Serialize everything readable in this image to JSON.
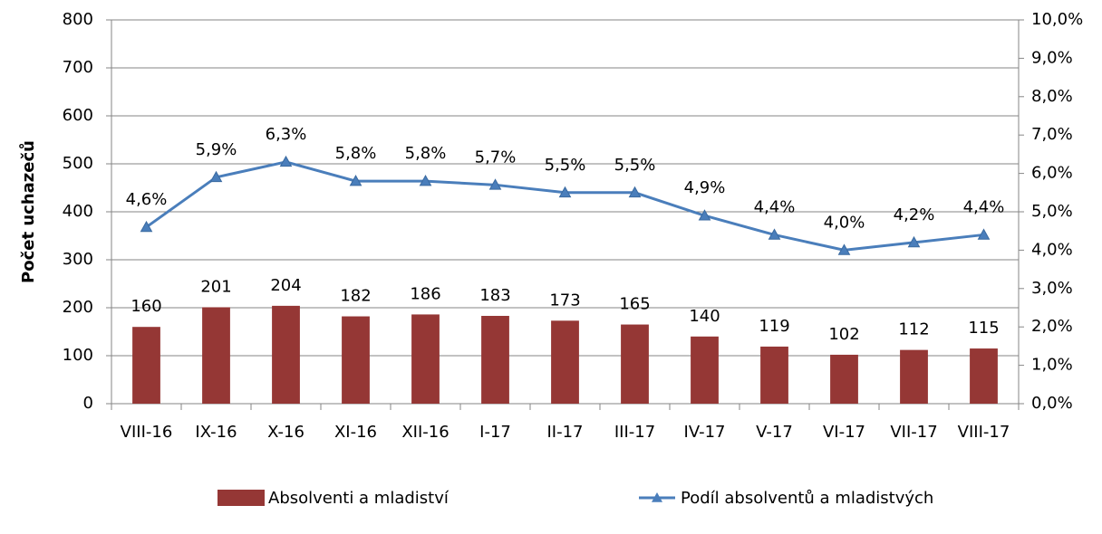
{
  "chart_data": {
    "type": "combo",
    "y_label": "Počet uchazečů",
    "categories": [
      "VIII-16",
      "IX-16",
      "X-16",
      "XI-16",
      "XII-16",
      "I-17",
      "II-17",
      "III-17",
      "IV-17",
      "V-17",
      "VI-17",
      "VII-17",
      "VIII-17"
    ],
    "series": [
      {
        "name": "Absolventi a mladiství",
        "type": "bar",
        "color": "#953735",
        "values": [
          160,
          201,
          204,
          182,
          186,
          183,
          173,
          165,
          140,
          119,
          102,
          112,
          115
        ]
      },
      {
        "name": "Podíl absolventů a mladistvých",
        "type": "line",
        "axis": "y2",
        "color": "#4a7ebb",
        "values": [
          4.6,
          5.9,
          6.3,
          5.8,
          5.8,
          5.7,
          5.5,
          5.5,
          4.9,
          4.4,
          4.0,
          4.2,
          4.4
        ],
        "value_labels": [
          "4,6%",
          "5,9%",
          "6,3%",
          "5,8%",
          "5,8%",
          "5,7%",
          "5,5%",
          "5,5%",
          "4,9%",
          "4,4%",
          "4,0%",
          "4,2%",
          "4,4%"
        ]
      }
    ],
    "ylim": [
      0,
      800
    ],
    "yticks": [
      0,
      100,
      200,
      300,
      400,
      500,
      600,
      700,
      800
    ],
    "y2lim": [
      0,
      10
    ],
    "y2ticks": [
      {
        "value": 0,
        "label": "0,0%"
      },
      {
        "value": 1,
        "label": "1,0%"
      },
      {
        "value": 2,
        "label": "2,0%"
      },
      {
        "value": 3,
        "label": "3,0%"
      },
      {
        "value": 4,
        "label": "4,0%"
      },
      {
        "value": 5,
        "label": "5,0%"
      },
      {
        "value": 6,
        "label": "6,0%"
      },
      {
        "value": 7,
        "label": "7,0%"
      },
      {
        "value": 8,
        "label": "8,0%"
      },
      {
        "value": 9,
        "label": "9,0%"
      },
      {
        "value": 10,
        "label": "10,0%"
      }
    ],
    "grid": true
  }
}
